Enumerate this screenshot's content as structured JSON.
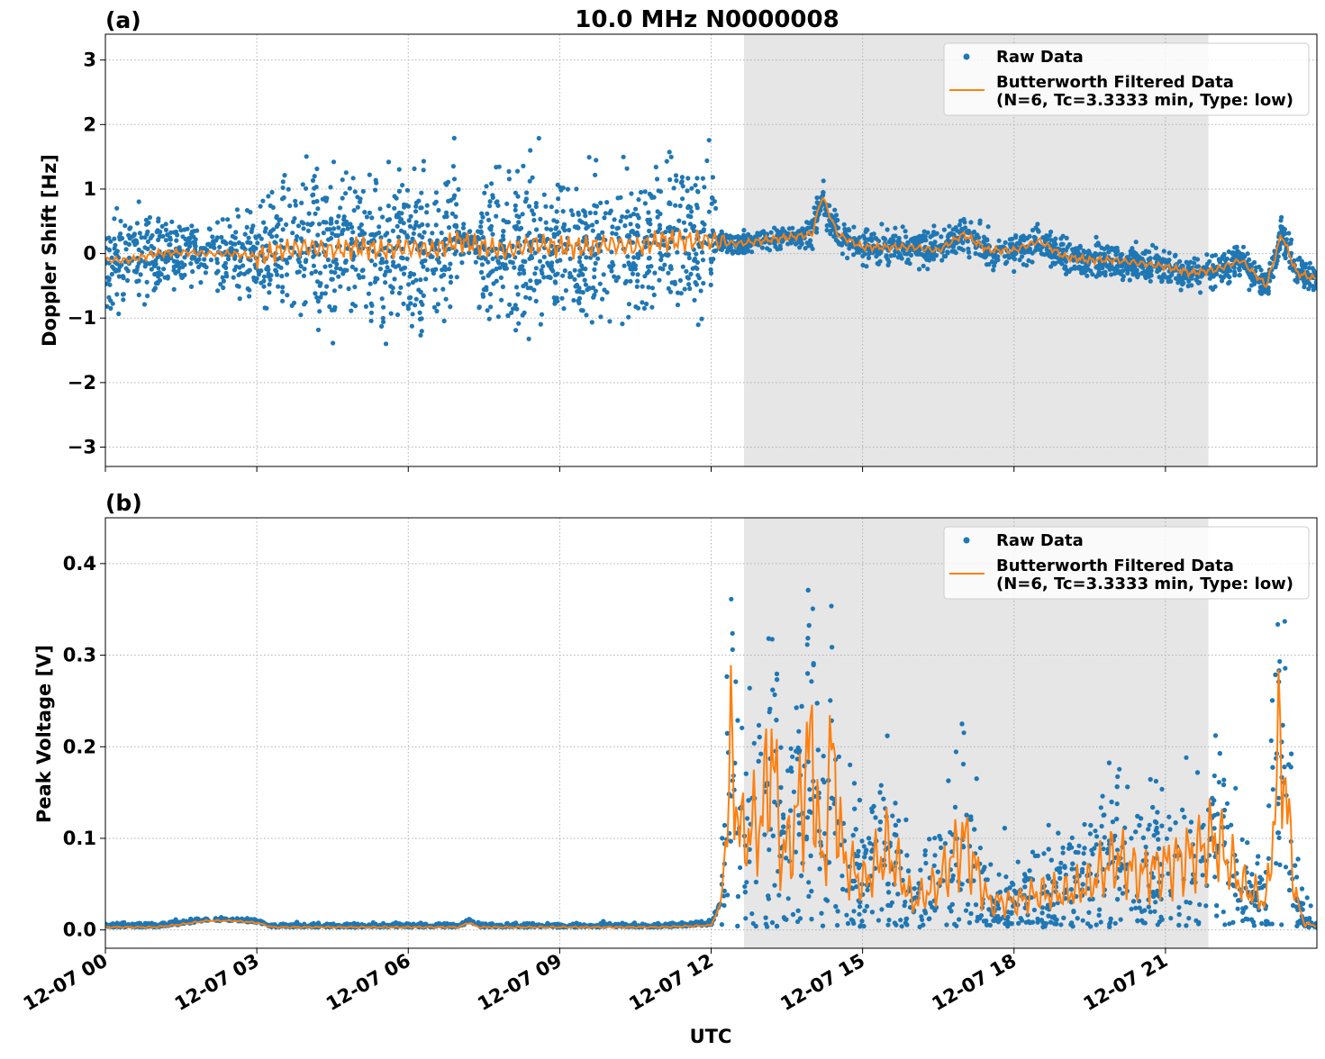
{
  "figure": {
    "title": "10.0 MHz N0000008",
    "xlabel": "UTC"
  },
  "legend": {
    "raw_label": "Raw Data",
    "filtered_label_line1": "Butterworth Filtered Data",
    "filtered_label_line2": "(N=6, Tc=3.3333 min, Type: low)"
  },
  "colors": {
    "raw": "#1f77b4",
    "filtered": "#ff7f0e",
    "shade": "#e6e6e6",
    "grid": "#b0b0b0"
  },
  "chart_data": [
    {
      "type": "scatter",
      "panel_label": "(a)",
      "ylabel": "Doppler Shift [Hz]",
      "x_unit": "UTC hours on 12-07",
      "xlim": [
        0,
        24
      ],
      "ylim": [
        -3.3,
        3.4
      ],
      "grid": true,
      "legend_position": "top-right",
      "yticks": [
        -3,
        -2,
        -1,
        0,
        1,
        2,
        3
      ],
      "ytick_labels": [
        "−3",
        "−2",
        "−1",
        "0",
        "1",
        "2",
        "3"
      ],
      "shaded_interval_hours": [
        12.65,
        21.85
      ],
      "series": [
        {
          "name": "Butterworth Filtered Data",
          "type": "line",
          "x": [
            0,
            0.5,
            1,
            1.5,
            2,
            2.5,
            3,
            3.5,
            4,
            4.5,
            5,
            5.5,
            6,
            6.5,
            7,
            7.5,
            8,
            8.5,
            9,
            9.5,
            10,
            10.5,
            11,
            11.5,
            12,
            12.5,
            13,
            13.5,
            14,
            14.2,
            14.5,
            15,
            15.5,
            16,
            16.5,
            17,
            17.5,
            18,
            18.5,
            19,
            19.5,
            20,
            20.5,
            21,
            21.5,
            22,
            22.5,
            23,
            23.3,
            23.6,
            24
          ],
          "y": [
            -0.1,
            -0.1,
            0.0,
            0.02,
            0.0,
            0.0,
            -0.05,
            0.05,
            0.1,
            0.05,
            0.1,
            0.05,
            0.1,
            0.05,
            0.2,
            0.1,
            0.05,
            0.15,
            0.1,
            0.1,
            0.15,
            0.1,
            0.2,
            0.2,
            0.2,
            0.15,
            0.2,
            0.25,
            0.3,
            0.9,
            0.3,
            0.1,
            0.1,
            0.1,
            0.05,
            0.3,
            0.05,
            0.05,
            0.2,
            -0.05,
            -0.1,
            -0.1,
            -0.15,
            -0.2,
            -0.3,
            -0.25,
            -0.1,
            -0.5,
            0.3,
            -0.3,
            -0.4
          ]
        }
      ]
    },
    {
      "type": "scatter",
      "panel_label": "(b)",
      "ylabel": "Peak Voltage [V]",
      "x_unit": "UTC hours on 12-07",
      "xlim": [
        0,
        24
      ],
      "ylim": [
        -0.02,
        0.45
      ],
      "grid": true,
      "legend_position": "top-right",
      "yticks": [
        0.0,
        0.1,
        0.2,
        0.3,
        0.4
      ],
      "ytick_labels": [
        "0.0",
        "0.1",
        "0.2",
        "0.3",
        "0.4"
      ],
      "xticks": [
        0,
        3,
        6,
        9,
        12,
        15,
        18,
        21
      ],
      "xtick_labels": [
        "12-07 00",
        "12-07 03",
        "12-07 06",
        "12-07 09",
        "12-07 12",
        "12-07 15",
        "12-07 18",
        "12-07 21"
      ],
      "shaded_interval_hours": [
        12.65,
        21.85
      ],
      "series": [
        {
          "name": "Butterworth Filtered Data",
          "type": "line",
          "x": [
            0,
            1,
            1.5,
            2,
            2.5,
            3,
            3.3,
            4,
            5,
            6,
            7,
            7.2,
            7.4,
            8,
            9,
            10,
            11,
            12,
            12.2,
            12.4,
            12.6,
            13,
            13.2,
            13.4,
            13.6,
            14,
            14.2,
            14.4,
            14.6,
            15,
            15.5,
            16,
            16.5,
            17,
            17.5,
            18,
            18.5,
            19,
            19.5,
            20,
            20.5,
            21,
            21.5,
            22,
            22.5,
            23,
            23.3,
            23.5,
            23.7,
            24
          ],
          "y": [
            0.003,
            0.003,
            0.006,
            0.01,
            0.01,
            0.008,
            0.003,
            0.003,
            0.003,
            0.003,
            0.003,
            0.008,
            0.003,
            0.003,
            0.003,
            0.003,
            0.003,
            0.005,
            0.03,
            0.19,
            0.1,
            0.12,
            0.2,
            0.08,
            0.1,
            0.2,
            0.06,
            0.2,
            0.08,
            0.05,
            0.09,
            0.03,
            0.05,
            0.1,
            0.03,
            0.03,
            0.04,
            0.04,
            0.05,
            0.08,
            0.06,
            0.07,
            0.08,
            0.1,
            0.05,
            0.03,
            0.22,
            0.07,
            0.01,
            0.003
          ]
        }
      ]
    }
  ]
}
